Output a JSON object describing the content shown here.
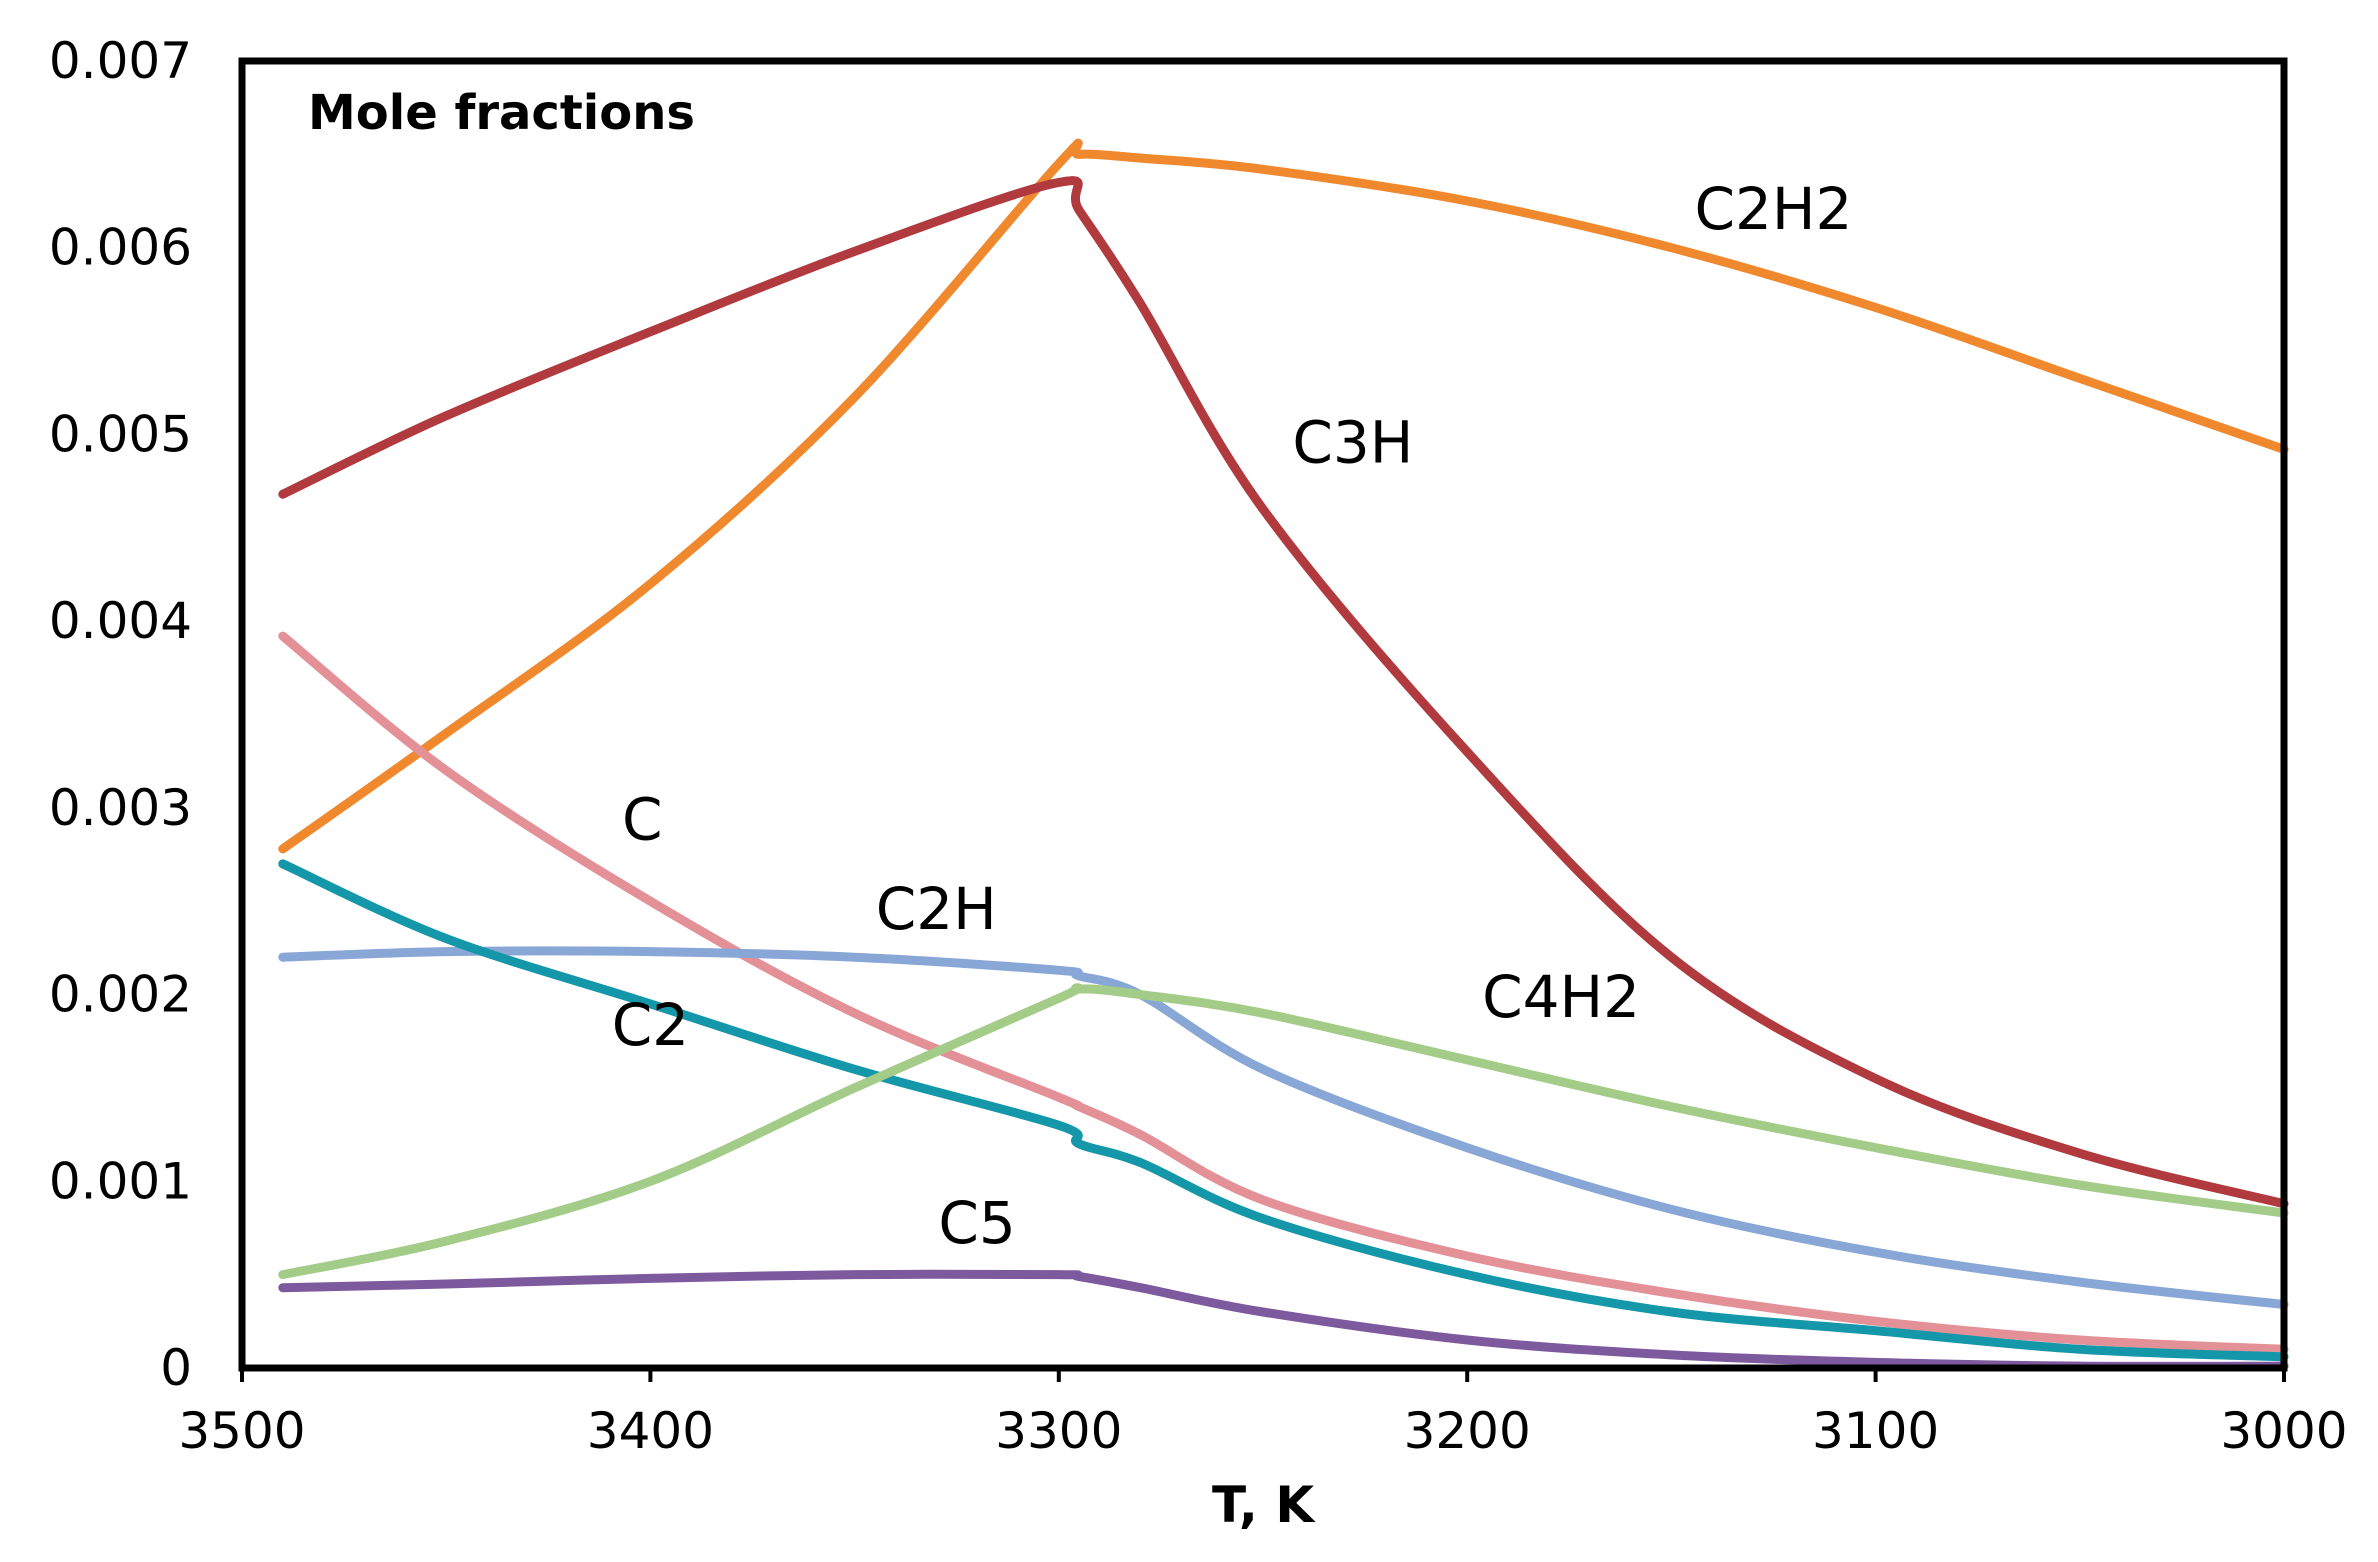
{
  "chart_data": {
    "type": "line",
    "title": "Mole fractions",
    "xlabel": "T, K",
    "ylabel": "",
    "xlim": [
      3500,
      3000
    ],
    "ylim": [
      0,
      0.007
    ],
    "x_reversed": true,
    "grid": false,
    "xticks": [
      "3500",
      "3400",
      "3300",
      "3200",
      "3100",
      "3000"
    ],
    "yticks": [
      "0",
      "0.001",
      "0.002",
      "0.003",
      "0.004",
      "0.005",
      "0.006",
      "0.007"
    ],
    "x": [
      3490,
      3450,
      3400,
      3350,
      3300,
      3295,
      3280,
      3250,
      3200,
      3150,
      3100,
      3050,
      3000
    ],
    "series": [
      {
        "name": "C2H2",
        "color": "#F0882E",
        "values": [
          0.00278,
          0.0034,
          0.0042,
          0.0052,
          0.00645,
          0.0065,
          0.00648,
          0.00642,
          0.00625,
          0.006,
          0.00568,
          0.0053,
          0.00492
        ]
      },
      {
        "name": "C3H",
        "color": "#B03A3E",
        "values": [
          0.00468,
          0.0051,
          0.00555,
          0.00598,
          0.00635,
          0.0062,
          0.0057,
          0.0046,
          0.0033,
          0.0022,
          0.00155,
          0.00115,
          0.00088
        ]
      },
      {
        "name": "C",
        "color": "#E39097",
        "values": [
          0.00392,
          0.0032,
          0.0025,
          0.0019,
          0.00145,
          0.0014,
          0.00125,
          0.0009,
          0.0006,
          0.0004,
          0.00025,
          0.00015,
          0.0001
        ]
      },
      {
        "name": "C2H",
        "color": "#89A7D6",
        "values": [
          0.0022,
          0.00223,
          0.00223,
          0.0022,
          0.00213,
          0.0021,
          0.002,
          0.0016,
          0.00118,
          0.00085,
          0.00062,
          0.00046,
          0.00034
        ]
      },
      {
        "name": "C2",
        "color": "#1497A8",
        "values": [
          0.0027,
          0.0023,
          0.00195,
          0.0016,
          0.0013,
          0.0012,
          0.0011,
          0.0008,
          0.0005,
          0.0003,
          0.0002,
          0.0001,
          6e-05
        ]
      },
      {
        "name": "C4H2",
        "color": "#A2CC87",
        "values": [
          0.0005,
          0.00068,
          0.001,
          0.0015,
          0.00198,
          0.00203,
          0.002,
          0.0019,
          0.00165,
          0.0014,
          0.00118,
          0.00098,
          0.00083
        ]
      },
      {
        "name": "C5",
        "color": "#7D5A9E",
        "values": [
          0.00043,
          0.00045,
          0.00048,
          0.0005,
          0.0005,
          0.00049,
          0.00043,
          0.0003,
          0.00015,
          7e-05,
          3e-05,
          1e-05,
          1e-05
        ]
      }
    ],
    "label_positions": {
      "C2H2": [
        3125,
        0.0061
      ],
      "C3H": [
        3228,
        0.00485
      ],
      "C": [
        3402,
        0.00283
      ],
      "C2H": [
        3330,
        0.00235
      ],
      "C2": [
        3400,
        0.00173
      ],
      "C4H2": [
        3177,
        0.00188
      ],
      "C5": [
        3320,
        0.00067
      ]
    }
  }
}
